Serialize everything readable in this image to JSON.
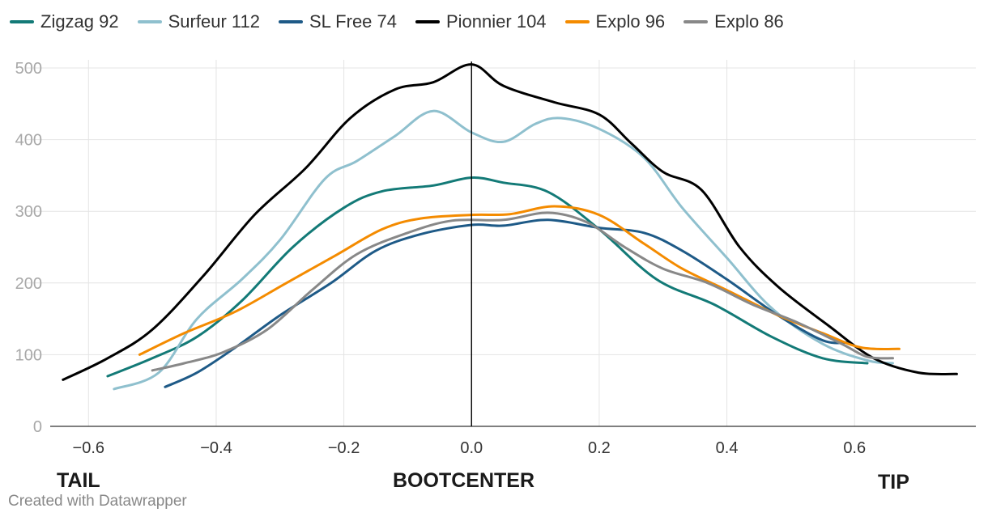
{
  "chart_data": {
    "type": "line",
    "title": "",
    "xlabel": "",
    "ylabel": "",
    "xlim": [
      -0.66,
      0.79
    ],
    "ylim": [
      0,
      500
    ],
    "x_ticks": [
      -0.6,
      -0.4,
      -0.2,
      0.0,
      0.2,
      0.4,
      0.6
    ],
    "x_tick_labels": [
      "−0.6",
      "−0.4",
      "−0.2",
      "0.0",
      "0.2",
      "0.4",
      "0.6"
    ],
    "y_ticks": [
      0,
      100,
      200,
      300,
      400,
      500
    ],
    "y_tick_labels": [
      "0",
      "100",
      "200",
      "300",
      "400",
      "500"
    ],
    "zone_labels": {
      "tail": "TAIL",
      "center": "BOOTCENTER",
      "tip": "TIP"
    },
    "reference_line_x": 0,
    "series": [
      {
        "name": "Zigzag 92",
        "color": "#137a77",
        "x": [
          -0.57,
          -0.5,
          -0.43,
          -0.36,
          -0.28,
          -0.2,
          -0.14,
          -0.06,
          0.0,
          0.05,
          0.12,
          0.2,
          0.29,
          0.38,
          0.47,
          0.55,
          0.62
        ],
        "y": [
          70,
          95,
          125,
          175,
          250,
          305,
          328,
          336,
          347,
          340,
          327,
          275,
          205,
          170,
          125,
          95,
          88
        ]
      },
      {
        "name": "Surfeur 112",
        "color": "#8fc0ce",
        "x": [
          -0.56,
          -0.49,
          -0.43,
          -0.36,
          -0.3,
          -0.23,
          -0.18,
          -0.12,
          -0.06,
          0.0,
          0.05,
          0.1,
          0.14,
          0.2,
          0.27,
          0.33,
          0.4,
          0.47,
          0.55,
          0.62,
          0.66
        ],
        "y": [
          52,
          75,
          150,
          205,
          260,
          345,
          370,
          405,
          440,
          410,
          397,
          422,
          430,
          415,
          375,
          305,
          235,
          165,
          115,
          92,
          88
        ]
      },
      {
        "name": "SL Free 74",
        "color": "#1e5a87",
        "x": [
          -0.48,
          -0.43,
          -0.37,
          -0.3,
          -0.22,
          -0.15,
          -0.08,
          0.0,
          0.05,
          0.12,
          0.2,
          0.27,
          0.33,
          0.4,
          0.48,
          0.55,
          0.59
        ],
        "y": [
          55,
          75,
          110,
          155,
          200,
          245,
          268,
          281,
          280,
          288,
          277,
          270,
          245,
          205,
          155,
          120,
          117
        ]
      },
      {
        "name": "Pionnier 104",
        "color": "#000000",
        "x": [
          -0.64,
          -0.57,
          -0.5,
          -0.42,
          -0.34,
          -0.26,
          -0.19,
          -0.12,
          -0.06,
          0.0,
          0.05,
          0.13,
          0.2,
          0.25,
          0.3,
          0.36,
          0.42,
          0.48,
          0.56,
          0.63,
          0.7,
          0.76
        ],
        "y": [
          65,
          95,
          135,
          210,
          295,
          360,
          430,
          470,
          480,
          505,
          475,
          452,
          435,
          395,
          355,
          330,
          250,
          195,
          140,
          95,
          75,
          73
        ]
      },
      {
        "name": "Explo 96",
        "color": "#f48b00",
        "x": [
          -0.52,
          -0.45,
          -0.37,
          -0.29,
          -0.21,
          -0.14,
          -0.08,
          0.0,
          0.06,
          0.13,
          0.2,
          0.27,
          0.33,
          0.4,
          0.48,
          0.55,
          0.61,
          0.67
        ],
        "y": [
          100,
          130,
          160,
          200,
          240,
          275,
          290,
          295,
          296,
          307,
          295,
          255,
          220,
          190,
          155,
          130,
          110,
          108
        ]
      },
      {
        "name": "Explo 86",
        "color": "#888888",
        "x": [
          -0.5,
          -0.45,
          -0.39,
          -0.32,
          -0.25,
          -0.18,
          -0.1,
          -0.03,
          0.05,
          0.12,
          0.18,
          0.24,
          0.3,
          0.37,
          0.44,
          0.51,
          0.58,
          0.62,
          0.66
        ],
        "y": [
          78,
          88,
          103,
          135,
          190,
          240,
          270,
          287,
          288,
          298,
          285,
          250,
          220,
          200,
          170,
          145,
          115,
          97,
          95
        ]
      }
    ]
  },
  "footer": {
    "credit": "Created with Datawrapper"
  }
}
